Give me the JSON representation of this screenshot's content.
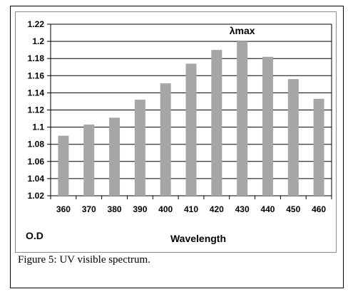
{
  "chart_data": {
    "type": "bar",
    "categories": [
      "360",
      "370",
      "380",
      "390",
      "400",
      "410",
      "420",
      "430",
      "440",
      "450",
      "460"
    ],
    "values": [
      1.09,
      1.103,
      1.111,
      1.132,
      1.151,
      1.174,
      1.19,
      1.2,
      1.182,
      1.156,
      1.133
    ],
    "ylim": [
      1.02,
      1.22
    ],
    "yticks": [
      "1.02",
      "1.04",
      "1.06",
      "1.08",
      "1.1",
      "1.12",
      "1.14",
      "1.16",
      "1.18",
      "1.2",
      "1.22"
    ],
    "xlabel": "Wavelength",
    "ylabel": "O.D",
    "annotation": {
      "text": "λmax",
      "category": "430"
    },
    "bar_color": "#a6a6a6",
    "grid": true
  },
  "caption": "Figure 5: UV visible spectrum."
}
